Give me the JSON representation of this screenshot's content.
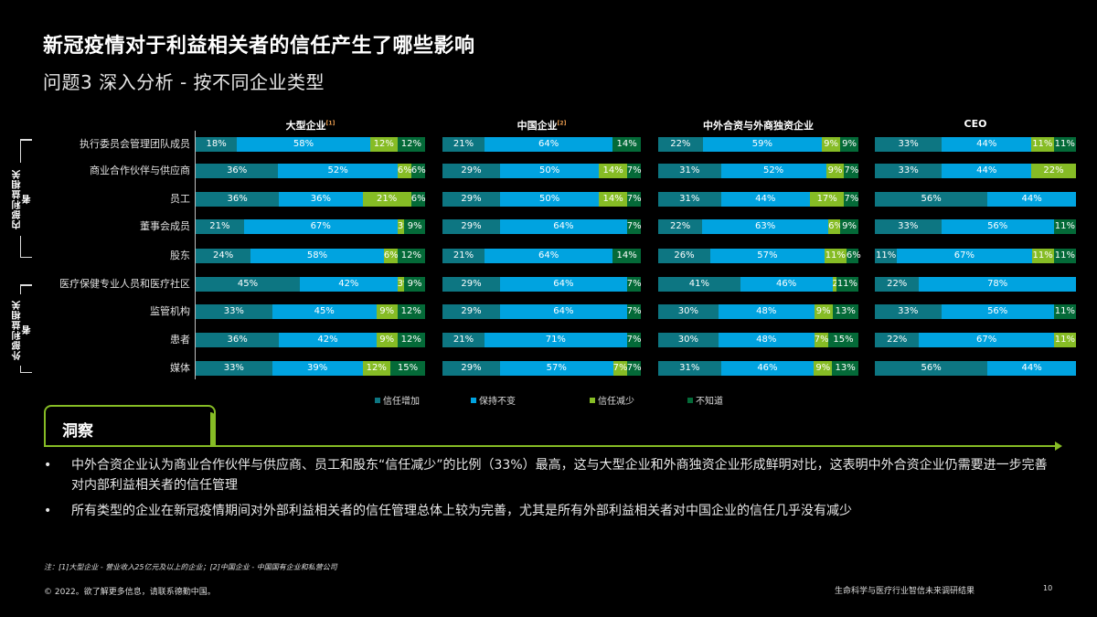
{
  "header": {
    "title": "新冠疫情对于利益相关者的信任产生了哪些影响",
    "subtitle": "问题3 深入分析 - 按不同企业类型"
  },
  "groups": [
    {
      "label": "内部利益相关者"
    },
    {
      "label": "外部利益相关者"
    }
  ],
  "rows": [
    "执行委员会管理团队成员",
    "商业合作伙伴与供应商",
    "员工",
    "董事会成员",
    "股东",
    "医疗保健专业人员和医疗社区",
    "监管机构",
    "患者",
    "媒体"
  ],
  "panels": [
    {
      "title": "大型企业",
      "sup": "[1]"
    },
    {
      "title": "中国企业",
      "sup": "[2]"
    },
    {
      "title": "中外合资与外商独资企业",
      "sup": ""
    },
    {
      "title": "CEO",
      "sup": ""
    }
  ],
  "legend": [
    {
      "label": "信任增加",
      "color": "#0d7682"
    },
    {
      "label": "保持不变",
      "color": "#00a3e0"
    },
    {
      "label": "信任减少",
      "color": "#86bc25"
    },
    {
      "label": "不知道",
      "color": "#046a38"
    }
  ],
  "chart_data": {
    "type": "bar",
    "orientation": "horizontal",
    "stacked": true,
    "percent": true,
    "title": "新冠疫情对于利益相关者的信任产生了哪些影响",
    "subtitle": "问题3 深入分析 - 按不同企业类型",
    "categories": [
      "执行委员会管理团队成员",
      "商业合作伙伴与供应商",
      "员工",
      "董事会成员",
      "股东",
      "医疗保健专业人员和医疗社区",
      "监管机构",
      "患者",
      "媒体"
    ],
    "category_groups": [
      {
        "name": "内部利益相关者",
        "categories": [
          "执行委员会管理团队成员",
          "商业合作伙伴与供应商",
          "员工",
          "董事会成员",
          "股东"
        ]
      },
      {
        "name": "外部利益相关者",
        "categories": [
          "医疗保健专业人员和医疗社区",
          "监管机构",
          "患者",
          "媒体"
        ]
      }
    ],
    "series_names": [
      "信任增加",
      "保持不变",
      "信任减少",
      "不知道"
    ],
    "legend_position": "bottom",
    "grid": false,
    "panels": [
      {
        "name": "大型企业",
        "values": [
          [
            18,
            58,
            12,
            12
          ],
          [
            36,
            52,
            6,
            6
          ],
          [
            36,
            36,
            21,
            6
          ],
          [
            21,
            67,
            3,
            9
          ],
          [
            24,
            58,
            6,
            12
          ],
          [
            45,
            42,
            3,
            9
          ],
          [
            33,
            45,
            9,
            12
          ],
          [
            36,
            42,
            9,
            12
          ],
          [
            33,
            39,
            12,
            15
          ]
        ]
      },
      {
        "name": "中国企业",
        "values": [
          [
            21,
            64,
            0,
            14
          ],
          [
            29,
            50,
            14,
            7
          ],
          [
            29,
            50,
            14,
            7
          ],
          [
            29,
            64,
            0,
            7
          ],
          [
            21,
            64,
            0,
            14
          ],
          [
            29,
            64,
            0,
            7
          ],
          [
            29,
            64,
            0,
            7
          ],
          [
            21,
            71,
            0,
            7
          ],
          [
            29,
            57,
            7,
            7
          ]
        ]
      },
      {
        "name": "中外合资与外商独资企业",
        "values": [
          [
            22,
            59,
            9,
            9
          ],
          [
            31,
            52,
            9,
            7
          ],
          [
            31,
            44,
            17,
            7
          ],
          [
            22,
            63,
            6,
            9
          ],
          [
            26,
            57,
            11,
            6
          ],
          [
            41,
            46,
            2,
            11
          ],
          [
            30,
            48,
            9,
            13
          ],
          [
            30,
            48,
            7,
            15
          ],
          [
            31,
            46,
            9,
            13
          ]
        ]
      },
      {
        "name": "CEO",
        "values": [
          [
            33,
            44,
            11,
            11
          ],
          [
            33,
            44,
            22,
            0
          ],
          [
            56,
            44,
            0,
            0
          ],
          [
            33,
            56,
            0,
            11
          ],
          [
            11,
            67,
            11,
            11
          ],
          [
            22,
            78,
            0,
            0
          ],
          [
            33,
            56,
            0,
            11
          ],
          [
            22,
            67,
            11,
            0
          ],
          [
            56,
            44,
            0,
            0
          ]
        ]
      }
    ]
  },
  "insight": {
    "title": "洞察",
    "bullets": [
      "中外合资企业认为商业合作伙伴与供应商、员工和股东“信任减少”的比例（33%）最高，这与大型企业和外商独资企业形成鲜明对比，这表明中外合资企业仍需要进一步完善对内部利益相关者的信任管理",
      "所有类型的企业在新冠疫情期间对外部利益相关者的信任管理总体上较为完善，尤其是所有外部利益相关者对中国企业的信任几乎没有减少"
    ],
    "bullet_glyph": "•"
  },
  "footer": {
    "note": "注：[1]大型企业 - 营业收入25亿元及以上的企业；[2]中国企业 - 中国国有企业和私营公司",
    "copyright": "© 2022。欲了解更多信息，请联系德勤中国。",
    "report_title": "生命科学与医疗行业智信未来调研结果",
    "page_number": "10"
  }
}
